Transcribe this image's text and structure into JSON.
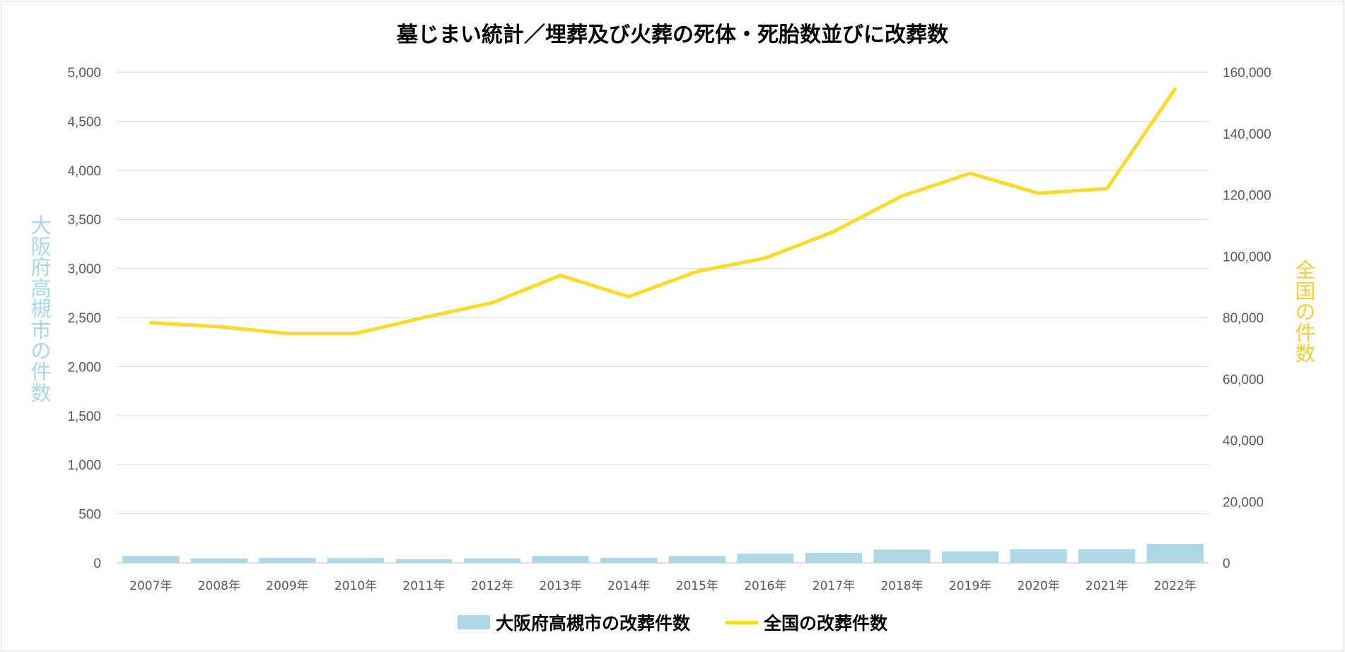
{
  "chart_data": {
    "type": "bar+line",
    "title": "墓じまい統計／埋葬及び火葬の死体・死胎数並びに改葬数",
    "categories": [
      "2007年",
      "2008年",
      "2009年",
      "2010年",
      "2011年",
      "2012年",
      "2013年",
      "2014年",
      "2015年",
      "2016年",
      "2017年",
      "2018年",
      "2019年",
      "2020年",
      "2021年",
      "2022年"
    ],
    "series": [
      {
        "name": "大阪府高槻市の改葬件数",
        "type": "bar",
        "axis": "left",
        "color": "#add8e6",
        "values": [
          72,
          45,
          52,
          50,
          38,
          45,
          72,
          52,
          72,
          95,
          102,
          135,
          118,
          140,
          140,
          195
        ]
      },
      {
        "name": "全国の改葬件数",
        "type": "line",
        "axis": "right",
        "color": "#f9dc2a",
        "values": [
          78300,
          77000,
          74800,
          74800,
          80000,
          84800,
          93700,
          86800,
          95000,
          99400,
          108000,
          119600,
          127000,
          120500,
          122000,
          154500
        ]
      }
    ],
    "y_left": {
      "label": "大阪府高槻市の件数",
      "min": 0,
      "max": 5000,
      "ticks": [
        "0",
        "500",
        "1,000",
        "1,500",
        "2,000",
        "2,500",
        "3,000",
        "3,500",
        "4,000",
        "4,500",
        "5,000"
      ]
    },
    "y_right": {
      "label": "全国の件数",
      "min": 0,
      "max": 160000,
      "ticks": [
        "0",
        "20,000",
        "40,000",
        "60,000",
        "80,000",
        "100,000",
        "120,000",
        "140,000",
        "160,000"
      ]
    },
    "grid": true,
    "legend_position": "bottom"
  }
}
